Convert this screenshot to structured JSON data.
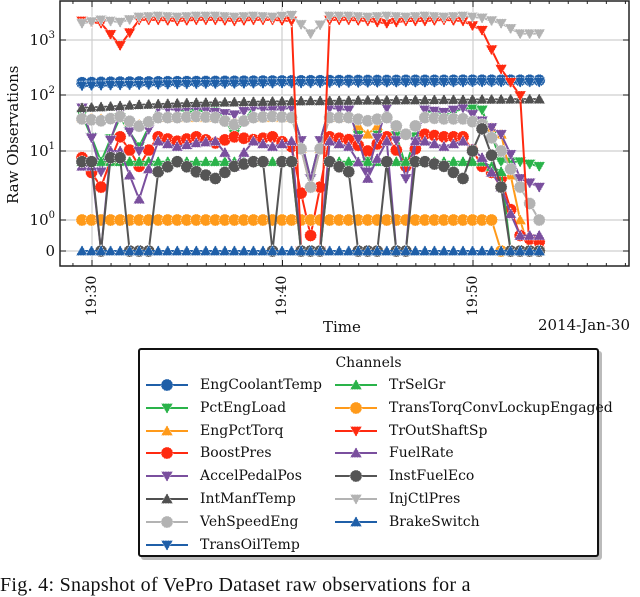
{
  "chart_data": {
    "type": "line",
    "title": "",
    "xlabel": "Time",
    "ylabel": "Raw Observations",
    "x_offset_label": "2014-Jan-30",
    "yscale": "symlog",
    "y_ticks": [
      "0",
      "10^0",
      "10^1",
      "10^2",
      "10^3"
    ],
    "x_ticks": [
      "19:30",
      "19:40",
      "19:50"
    ],
    "x_range_minutes": [
      "19:29.5",
      "19:54"
    ],
    "grid": true,
    "legend_title": "Channels",
    "legend_position": "below",
    "x": [
      "19:30",
      "19:31",
      "19:32",
      "19:33",
      "19:34",
      "19:35",
      "19:36",
      "19:37",
      "19:38",
      "19:39",
      "19:40",
      "19:41",
      "19:42",
      "19:43",
      "19:44",
      "19:45",
      "19:46",
      "19:47",
      "19:48",
      "19:49",
      "19:50",
      "19:51",
      "19:52",
      "19:53",
      "19:54"
    ],
    "series": [
      {
        "name": "EngCoolantTemp",
        "color": "#1f5fa8",
        "marker": "circle",
        "values": [
          170,
          172,
          174,
          175,
          176,
          177,
          178,
          179,
          180,
          181,
          182,
          183,
          184,
          185,
          186,
          186,
          186,
          187,
          187,
          187,
          188,
          188,
          188,
          188,
          188
        ]
      },
      {
        "name": "PctEngLoad",
        "color": "#2ab34a",
        "marker": "triangle-down",
        "values": [
          45,
          7,
          40,
          12,
          60,
          55,
          50,
          60,
          20,
          60,
          55,
          60,
          4,
          60,
          55,
          7,
          60,
          6,
          55,
          40,
          60,
          55,
          7,
          7,
          6
        ]
      },
      {
        "name": "EngPctTorq",
        "color": "#ff9a1a",
        "marker": "triangle-up",
        "values": [
          40,
          38,
          40,
          30,
          40,
          40,
          40,
          40,
          35,
          40,
          40,
          40,
          3,
          40,
          40,
          20,
          40,
          20,
          40,
          40,
          40,
          35,
          20,
          1,
          0
        ]
      },
      {
        "name": "BoostPres",
        "color": "#ff2a10",
        "marker": "circle",
        "values": [
          8,
          3,
          18,
          6,
          18,
          15,
          18,
          14,
          18,
          16,
          18,
          12,
          0.5,
          18,
          16,
          10,
          18,
          6,
          20,
          18,
          18,
          6,
          4,
          0.5,
          0.3
        ]
      },
      {
        "name": "AccelPedalPos",
        "color": "#7a4f9e",
        "marker": "triangle-down",
        "values": [
          60,
          5,
          50,
          10,
          60,
          55,
          60,
          50,
          45,
          60,
          55,
          60,
          4,
          60,
          55,
          5,
          60,
          4,
          55,
          50,
          60,
          35,
          20,
          4,
          3
        ]
      },
      {
        "name": "IntManfTemp",
        "color": "#505050",
        "marker": "triangle-up",
        "values": [
          60,
          62,
          65,
          68,
          70,
          72,
          74,
          75,
          76,
          77,
          78,
          79,
          80,
          80,
          81,
          82,
          82,
          83,
          83,
          84,
          84,
          85,
          85,
          86,
          86
        ]
      },
      {
        "name": "VehSpeedEng",
        "color": "#b3b3b3",
        "marker": "circle",
        "values": [
          38,
          35,
          42,
          28,
          40,
          40,
          42,
          40,
          30,
          40,
          42,
          40,
          3,
          40,
          40,
          35,
          40,
          20,
          40,
          38,
          38,
          30,
          10,
          3,
          1
        ]
      },
      {
        "name": "TransOilTemp",
        "color": "#1f5fa8",
        "marker": "triangle-down",
        "values": [
          150,
          152,
          154,
          156,
          158,
          160,
          162,
          163,
          164,
          165,
          166,
          167,
          168,
          169,
          170,
          171,
          172,
          173,
          173,
          174,
          174,
          175,
          175,
          175,
          175
        ]
      },
      {
        "name": "TrSelGr",
        "color": "#2ab34a",
        "marker": "triangle-up",
        "values": [
          7,
          7,
          7,
          7,
          7,
          7,
          7,
          7,
          7,
          7,
          7,
          7,
          0,
          7,
          7,
          7,
          7,
          7,
          7,
          7,
          7,
          7,
          5,
          0,
          0
        ]
      },
      {
        "name": "TransTorqConvLockupEngaged",
        "color": "#ff9a1a",
        "marker": "circle",
        "values": [
          1,
          1,
          1,
          1,
          1,
          1,
          1,
          1,
          1,
          1,
          1,
          1,
          1,
          1,
          1,
          1,
          1,
          1,
          1,
          1,
          1,
          1,
          0,
          0,
          0
        ]
      },
      {
        "name": "TrOutShaftSp",
        "color": "#ff2a10",
        "marker": "triangle-down",
        "values": [
          2200,
          2000,
          800,
          2300,
          2300,
          2200,
          2300,
          2300,
          2200,
          2300,
          2300,
          2200,
          0,
          2300,
          2300,
          2200,
          2000,
          2200,
          2200,
          2300,
          2200,
          1500,
          300,
          100,
          0
        ]
      },
      {
        "name": "FuelRate",
        "color": "#7a4f9e",
        "marker": "triangle-up",
        "values": [
          6,
          0,
          10,
          2,
          15,
          12,
          14,
          15,
          6,
          15,
          12,
          15,
          0,
          15,
          12,
          4,
          15,
          0,
          15,
          12,
          15,
          8,
          3,
          0.5,
          0.5
        ]
      },
      {
        "name": "InstFuelEco",
        "color": "#555555",
        "marker": "circle",
        "values": [
          7,
          0,
          8,
          0,
          5,
          7,
          5,
          4,
          6,
          7,
          0,
          7,
          0,
          7,
          5,
          0,
          7,
          0,
          7,
          6,
          4,
          25,
          3,
          0,
          0
        ]
      },
      {
        "name": "InjCtlPres",
        "color": "#b3b3b3",
        "marker": "triangle-down",
        "values": [
          2000,
          2300,
          2100,
          2600,
          2700,
          2600,
          2700,
          2700,
          2600,
          2700,
          2600,
          2800,
          1300,
          2700,
          2700,
          2600,
          2700,
          2600,
          2700,
          2600,
          2700,
          2500,
          2000,
          1300,
          1300
        ]
      },
      {
        "name": "BrakeSwitch",
        "color": "#1f5fa8",
        "marker": "triangle-up",
        "values": [
          0,
          0,
          0,
          0,
          0,
          0,
          0,
          0,
          0,
          0,
          0,
          0,
          0,
          0,
          0,
          0,
          0,
          0,
          0,
          0,
          0,
          0,
          0,
          0,
          0
        ]
      }
    ]
  },
  "legend": {
    "title": "Channels",
    "col1": [
      {
        "label": "EngCoolantTemp",
        "color": "#1f5fa8",
        "marker": "circle"
      },
      {
        "label": "PctEngLoad",
        "color": "#2ab34a",
        "marker": "triangle-down"
      },
      {
        "label": "EngPctTorq",
        "color": "#ff9a1a",
        "marker": "triangle-up"
      },
      {
        "label": "BoostPres",
        "color": "#ff2a10",
        "marker": "circle"
      },
      {
        "label": "AccelPedalPos",
        "color": "#7a4f9e",
        "marker": "triangle-down"
      },
      {
        "label": "IntManfTemp",
        "color": "#505050",
        "marker": "triangle-up"
      },
      {
        "label": "VehSpeedEng",
        "color": "#b3b3b3",
        "marker": "circle"
      },
      {
        "label": "TransOilTemp",
        "color": "#1f5fa8",
        "marker": "triangle-down"
      }
    ],
    "col2": [
      {
        "label": "TrSelGr",
        "color": "#2ab34a",
        "marker": "triangle-up"
      },
      {
        "label": "TransTorqConvLockupEngaged",
        "color": "#ff9a1a",
        "marker": "circle"
      },
      {
        "label": "TrOutShaftSp",
        "color": "#ff2a10",
        "marker": "triangle-down"
      },
      {
        "label": "FuelRate",
        "color": "#7a4f9e",
        "marker": "triangle-up"
      },
      {
        "label": "InstFuelEco",
        "color": "#555555",
        "marker": "circle"
      },
      {
        "label": "InjCtlPres",
        "color": "#b3b3b3",
        "marker": "triangle-down"
      },
      {
        "label": "BrakeSwitch",
        "color": "#1f5fa8",
        "marker": "triangle-up"
      }
    ]
  },
  "caption": "Fig. 4: Snapshot of VePro Dataset raw observations for a"
}
